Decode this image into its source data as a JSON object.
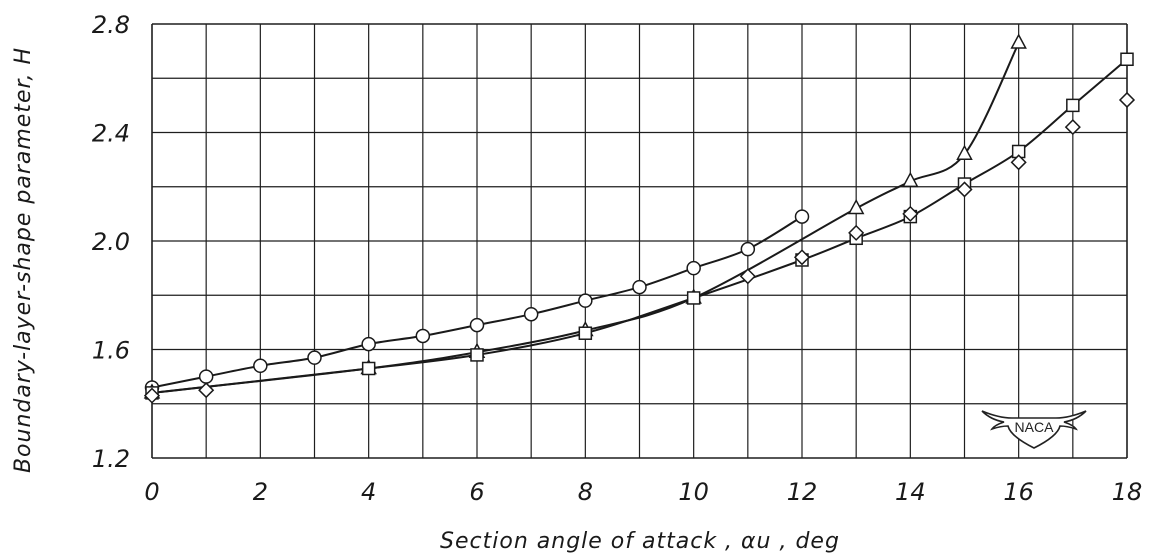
{
  "chart_data": {
    "type": "line",
    "title": "",
    "xlabel": "Section angle of attack , αu , deg",
    "ylabel": "Boundary-layer-shape parameter, H",
    "xlim": [
      0,
      18
    ],
    "ylim": [
      1.2,
      2.8
    ],
    "x_ticks": [
      "0",
      "2",
      "4",
      "6",
      "8",
      "10",
      "12",
      "14",
      "16",
      "18"
    ],
    "y_ticks": [
      "1.2",
      "1.6",
      "2.0",
      "2.4",
      "2.8"
    ],
    "grid": true,
    "series": [
      {
        "marker": "circle",
        "x": [
          0,
          1,
          2,
          3,
          4,
          5,
          6,
          7,
          8,
          9,
          10,
          11,
          12
        ],
        "y": [
          1.46,
          1.5,
          1.54,
          1.57,
          1.62,
          1.65,
          1.69,
          1.73,
          1.78,
          1.83,
          1.9,
          1.97,
          2.09
        ]
      },
      {
        "marker": "triangle",
        "x": [
          0,
          4,
          6,
          8,
          10,
          13,
          14,
          15,
          16
        ],
        "y": [
          1.44,
          1.53,
          1.59,
          1.67,
          1.79,
          2.12,
          2.22,
          2.32,
          2.73
        ]
      },
      {
        "marker": "square",
        "x": [
          0,
          4,
          6,
          8,
          10,
          12,
          13,
          14,
          15,
          16,
          17,
          18
        ],
        "y": [
          1.44,
          1.53,
          1.58,
          1.66,
          1.79,
          1.93,
          2.01,
          2.09,
          2.21,
          2.33,
          2.5,
          2.67
        ]
      },
      {
        "marker": "diamond",
        "x": [
          0,
          1,
          11,
          12,
          13,
          14,
          15,
          16,
          17,
          18
        ],
        "y": [
          1.43,
          1.45,
          1.87,
          1.94,
          2.03,
          2.1,
          2.19,
          2.29,
          2.42,
          2.52
        ]
      }
    ],
    "annotations": [
      "NACA"
    ]
  }
}
